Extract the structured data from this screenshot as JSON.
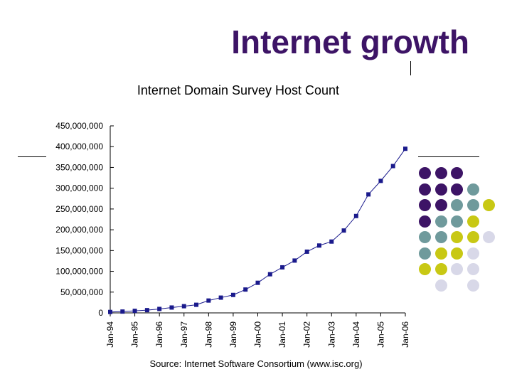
{
  "slide": {
    "title": "Internet growth"
  },
  "colors": {
    "title": "#3d1466",
    "series": "#1a1a8c",
    "dot_purple": "#3d1466",
    "dot_teal": "#6f9a9c",
    "dot_yellow": "#c8c814",
    "dot_lavender": "#d8d8e8"
  },
  "decor": {
    "dot_grid": [
      [
        "purple",
        "purple",
        "purple",
        null,
        null
      ],
      [
        "purple",
        "purple",
        "purple",
        "teal",
        null
      ],
      [
        "purple",
        "purple",
        "teal",
        "teal",
        "yellow"
      ],
      [
        "purple",
        "teal",
        "teal",
        "yellow",
        null
      ],
      [
        "teal",
        "teal",
        "yellow",
        "yellow",
        "lavender"
      ],
      [
        "teal",
        "yellow",
        "yellow",
        "lavender",
        null
      ],
      [
        "yellow",
        "yellow",
        "lavender",
        "lavender",
        null
      ],
      [
        null,
        "lavender",
        null,
        "lavender",
        null
      ]
    ]
  },
  "chart_data": {
    "type": "line",
    "title": "Internet Domain Survey Host Count",
    "source": "Source: Internet Software Consortium (www.isc.org)",
    "xlabel": "",
    "ylabel": "",
    "ylim": [
      0,
      450000000
    ],
    "y_ticks": [
      0,
      50000000,
      100000000,
      150000000,
      200000000,
      250000000,
      300000000,
      350000000,
      400000000,
      450000000
    ],
    "y_tick_labels": [
      "0",
      "50,000,000",
      "100,000,000",
      "150,000,000",
      "200,000,000",
      "250,000,000",
      "300,000,000",
      "350,000,000",
      "400,000,000",
      "450,000,000"
    ],
    "x_tick_labels": [
      "Jan-94",
      "Jan-95",
      "Jan-96",
      "Jan-97",
      "Jan-98",
      "Jan-99",
      "Jan-00",
      "Jan-01",
      "Jan-02",
      "Jan-03",
      "Jan-04",
      "Jan-05",
      "Jan-06"
    ],
    "x_range": [
      "Jan-94",
      "Jan-06"
    ],
    "grid": false,
    "marker": "square",
    "series": [
      {
        "x": [
          "Jan-94",
          "Jul-94",
          "Jan-95",
          "Jul-95",
          "Jan-96",
          "Jul-96",
          "Jan-97",
          "Jul-97",
          "Jan-98",
          "Jul-98",
          "Jan-99",
          "Jul-99",
          "Jan-00",
          "Jul-00",
          "Jan-01",
          "Jul-01",
          "Jan-02",
          "Jul-02",
          "Jan-03",
          "Jul-03",
          "Jan-04",
          "Jul-04",
          "Jan-05",
          "Jul-05",
          "Jan-06"
        ],
        "values": [
          2200000,
          3200000,
          4900000,
          6600000,
          9500000,
          12900000,
          16100000,
          19500000,
          29700000,
          36700000,
          43200000,
          56200000,
          72400000,
          93000000,
          109600000,
          125900000,
          147300000,
          162100000,
          171600000,
          198200000,
          233100000,
          285100000,
          317600000,
          353300000,
          394900000
        ]
      }
    ]
  }
}
